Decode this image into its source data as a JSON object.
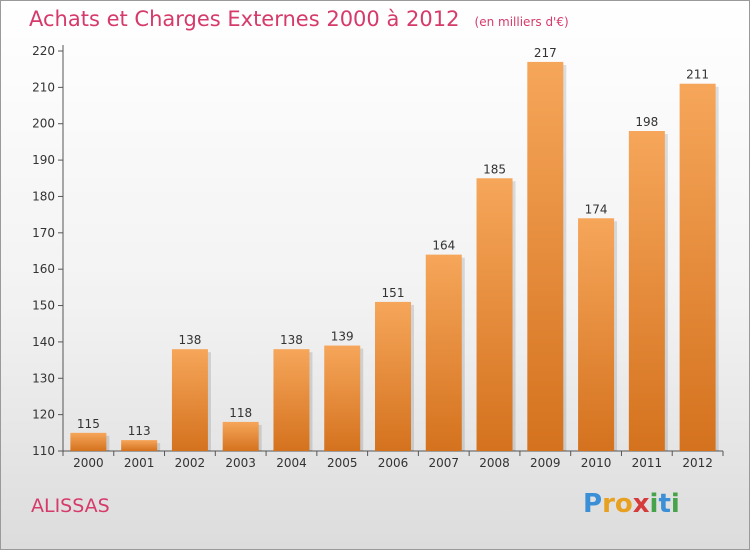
{
  "header": {
    "title": "Achats et Charges Externes 2000 à 2012",
    "units": "(en milliers d'€)"
  },
  "footer": {
    "commune": "ALISSAS",
    "brand_letters": [
      "P",
      "r",
      "o",
      "x",
      "i",
      "t",
      "i"
    ],
    "brand_colors": [
      "#3a8fd6",
      "#e8a020",
      "#e8a020",
      "#d63a3a",
      "#46a34a",
      "#3a8fd6",
      "#46a34a"
    ]
  },
  "colors": {
    "bar_light": "#f6a65a",
    "bar_dark": "#d4721e",
    "axis": "#555555",
    "grid": "#cfcfcf",
    "text": "#333333"
  },
  "chart_data": {
    "type": "bar",
    "title": "Achats et Charges Externes 2000 à 2012",
    "subtitle": "(en milliers d'€)",
    "categories": [
      "2000",
      "2001",
      "2002",
      "2003",
      "2004",
      "2005",
      "2006",
      "2007",
      "2008",
      "2009",
      "2010",
      "2011",
      "2012"
    ],
    "values": [
      115,
      113,
      138,
      118,
      138,
      139,
      151,
      164,
      185,
      217,
      174,
      198,
      211
    ],
    "ylim": [
      110,
      220
    ],
    "yticks": [
      110,
      120,
      130,
      140,
      150,
      160,
      170,
      180,
      190,
      200,
      210,
      220
    ],
    "grid": false,
    "data_labels": true
  }
}
